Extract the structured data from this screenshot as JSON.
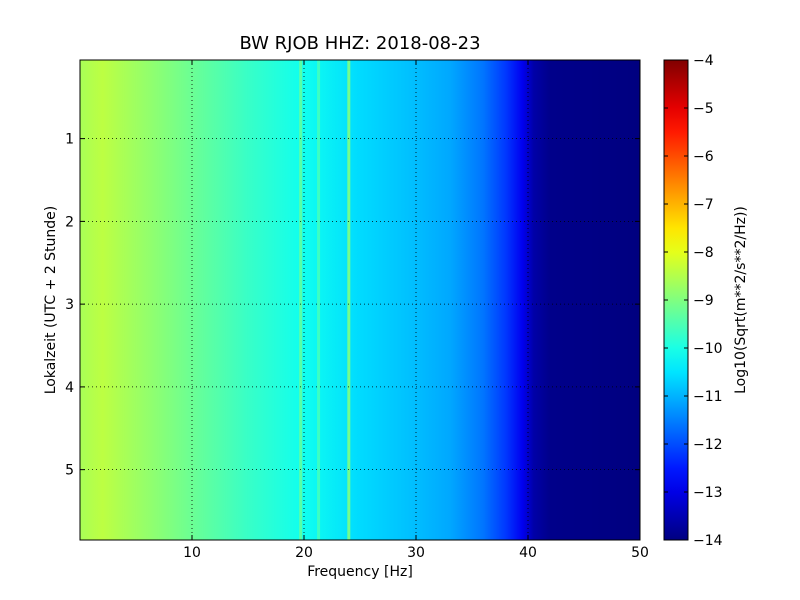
{
  "chart_data": {
    "type": "heatmap",
    "title": "BW RJOB HHZ: 2018-08-23",
    "xlabel": "Frequency [Hz]",
    "ylabel": "Lokalzeit (UTC + 2 Stunde)",
    "xlim": [
      0,
      50
    ],
    "ylim": [
      5.85,
      0.05
    ],
    "x_ticks": [
      10,
      20,
      30,
      40,
      50
    ],
    "y_ticks": [
      1,
      2,
      3,
      4,
      5
    ],
    "grid": true,
    "colormap": "jet",
    "colorbar": {
      "label": "Log10(Sqrt(m**2/s**2/Hz))",
      "range": [
        -14,
        -4
      ],
      "ticks": [
        -4,
        -5,
        -6,
        -7,
        -8,
        -9,
        -10,
        -11,
        -12,
        -13,
        -14
      ]
    },
    "spectral_profile": {
      "frequency": [
        0,
        2,
        5,
        10,
        15,
        20,
        25,
        30,
        33,
        36,
        38,
        39.5,
        40.5,
        42,
        50
      ],
      "value": [
        -8.6,
        -8.4,
        -8.7,
        -9.2,
        -9.7,
        -10.1,
        -10.6,
        -10.9,
        -11.1,
        -11.6,
        -12.2,
        -12.9,
        -13.6,
        -13.9,
        -14
      ]
    },
    "persistent_lines_hz": [
      {
        "frequency": 19.7,
        "value": -9.3
      },
      {
        "frequency": 21.3,
        "value": -9.6
      },
      {
        "frequency": 24.0,
        "value": -9.0
      }
    ]
  }
}
